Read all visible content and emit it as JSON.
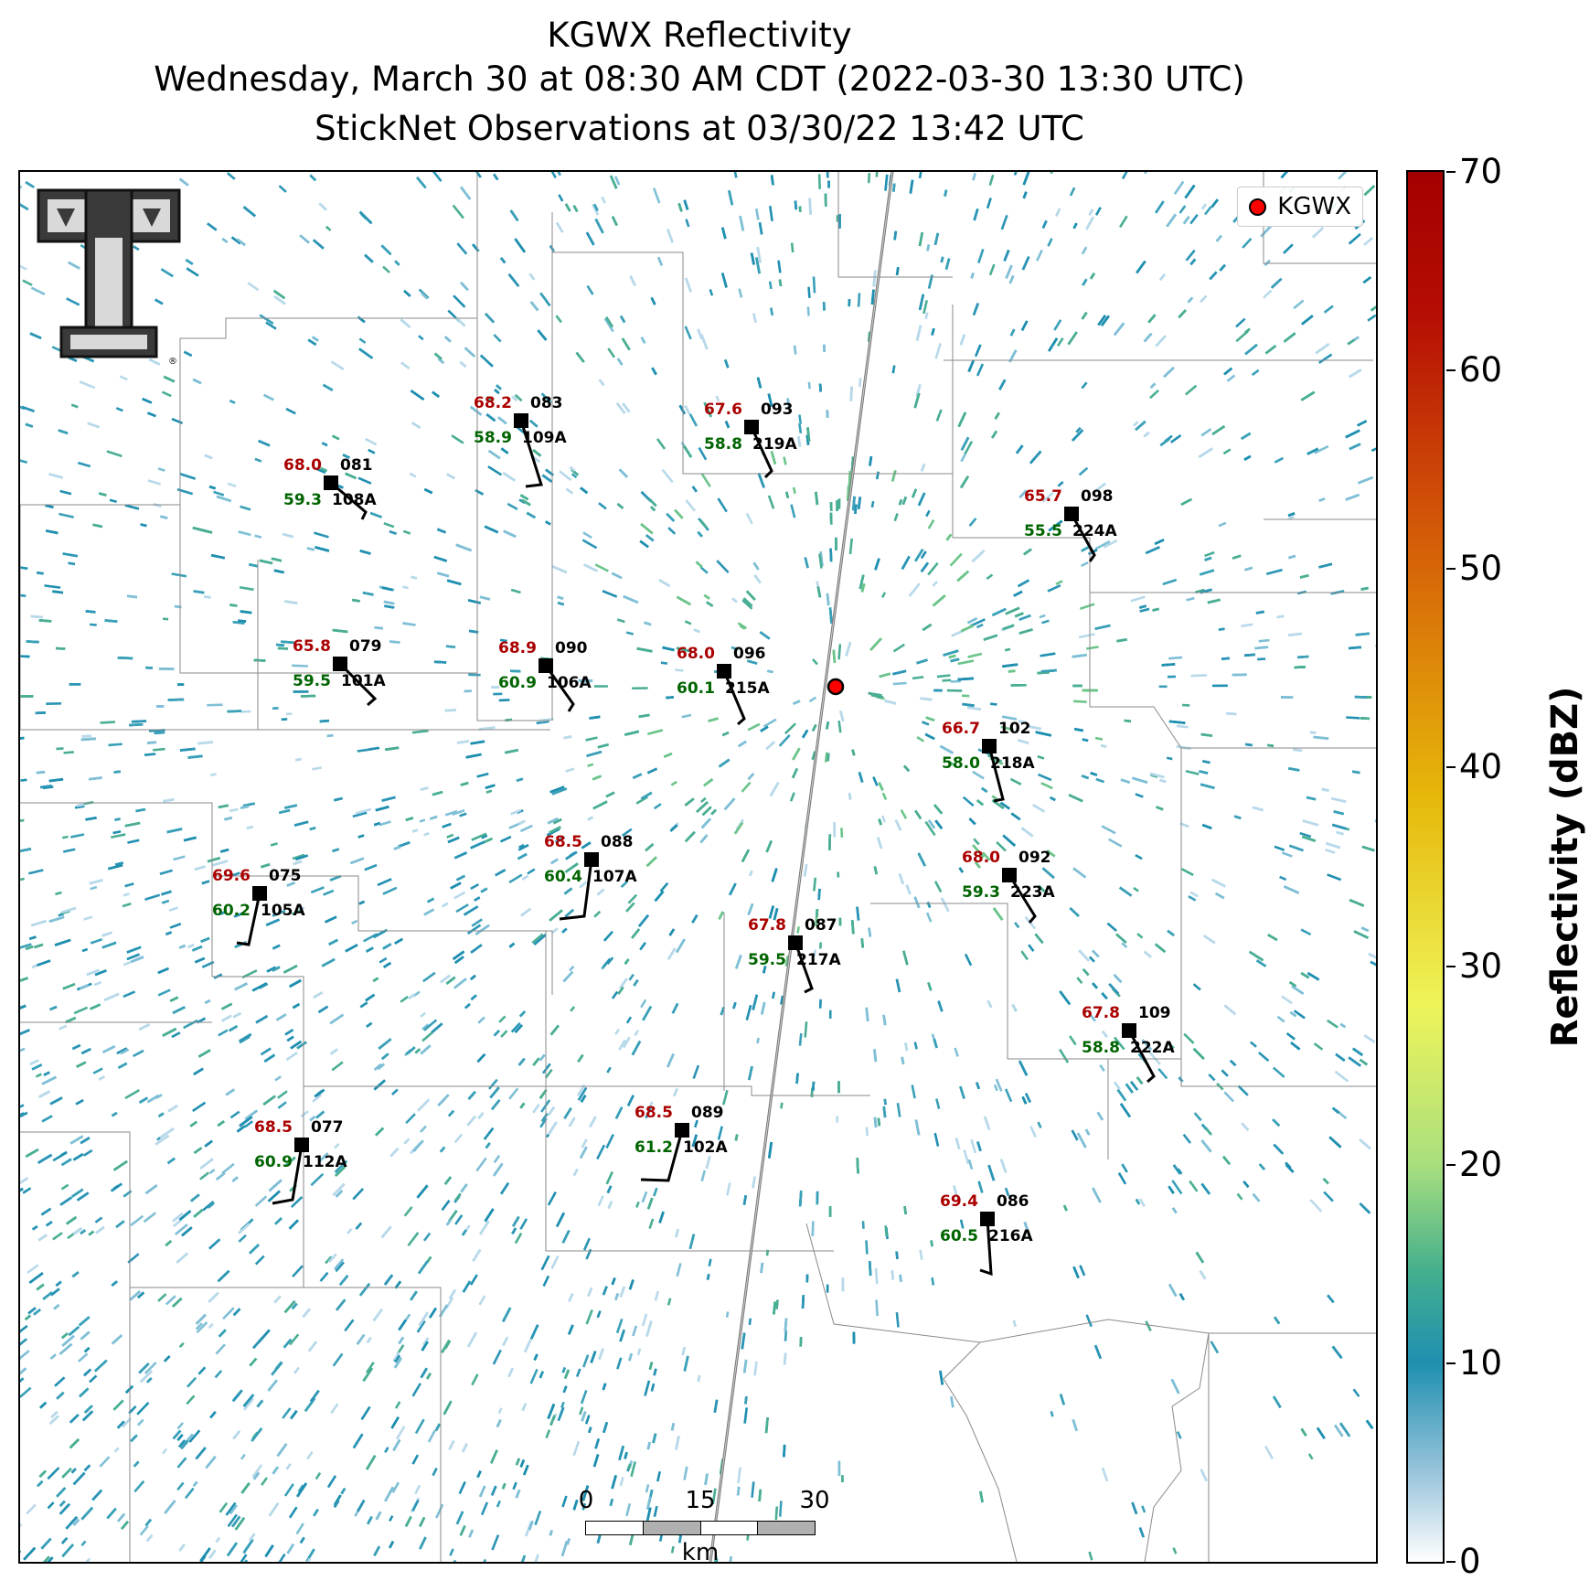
{
  "title": {
    "line1": "KGWX Reflectivity",
    "line2": "Wednesday, March 30 at 08:30 AM CDT (2022-03-30 13:30 UTC)",
    "line3": "StickNet Observations at 03/30/22 13:42 UTC"
  },
  "legend": {
    "label": "KGWX"
  },
  "colorbar": {
    "label": "Reflectivity (dBZ)",
    "min": 0,
    "max": 70,
    "ticks": [
      "0",
      "10",
      "20",
      "30",
      "40",
      "50",
      "60",
      "70"
    ]
  },
  "scalebar": {
    "labels": [
      "0",
      "15",
      "30"
    ],
    "unit": "km"
  },
  "logo": {
    "name": "Texas Tech Double T logo",
    "mark": "®"
  },
  "colors": {
    "temp": "#aa0000",
    "dew": "#006400",
    "radar_site": "#ff0000"
  },
  "stations": [
    {
      "temp": "68.0",
      "dew": "59.3",
      "id": "081",
      "name": "108A"
    },
    {
      "temp": "68.2",
      "dew": "58.9",
      "id": "083",
      "name": "109A"
    },
    {
      "temp": "67.6",
      "dew": "58.8",
      "id": "093",
      "name": "219A"
    },
    {
      "temp": "65.7",
      "dew": "55.5",
      "id": "098",
      "name": "224A"
    },
    {
      "temp": "65.8",
      "dew": "59.5",
      "id": "079",
      "name": "101A"
    },
    {
      "temp": "68.9",
      "dew": "60.9",
      "id": "090",
      "name": "106A"
    },
    {
      "temp": "68.0",
      "dew": "60.1",
      "id": "096",
      "name": "215A"
    },
    {
      "temp": "66.7",
      "dew": "58.0",
      "id": "102",
      "name": "218A"
    },
    {
      "temp": "68.5",
      "dew": "60.4",
      "id": "088",
      "name": "107A"
    },
    {
      "temp": "69.6",
      "dew": "60.2",
      "id": "075",
      "name": "105A"
    },
    {
      "temp": "68.0",
      "dew": "59.3",
      "id": "092",
      "name": "223A"
    },
    {
      "temp": "67.8",
      "dew": "59.5",
      "id": "087",
      "name": "217A"
    },
    {
      "temp": "67.8",
      "dew": "58.8",
      "id": "109",
      "name": "222A"
    },
    {
      "temp": "68.5",
      "dew": "61.2",
      "id": "089",
      "name": "102A"
    },
    {
      "temp": "68.5",
      "dew": "60.9",
      "id": "077",
      "name": "112A"
    },
    {
      "temp": "69.4",
      "dew": "60.5",
      "id": "086",
      "name": "216A"
    }
  ]
}
